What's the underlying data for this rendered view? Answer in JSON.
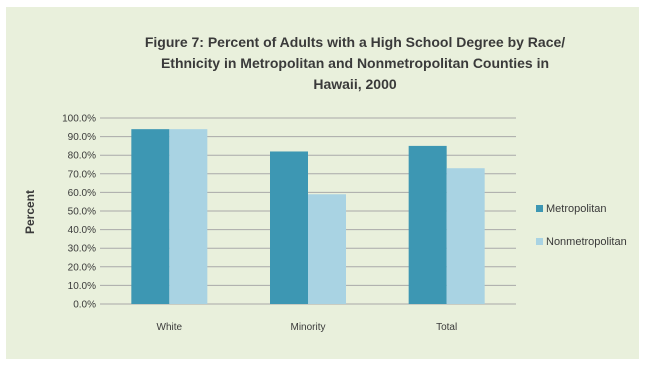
{
  "chart_data": {
    "type": "bar",
    "title_lines": [
      "Figure 7: Percent of Adults with a High School Degree by Race/",
      "Ethnicity in Metropolitan and Nonmetropolitan Counties in",
      "Hawaii, 2000"
    ],
    "ylabel": "Percent",
    "xlabel": "",
    "categories": [
      "White",
      "Minority",
      "Total"
    ],
    "series": [
      {
        "name": "Metropolitan",
        "values": [
          94.0,
          82.0,
          85.0
        ],
        "color": "#3d97b3"
      },
      {
        "name": "Nonmetropolitan",
        "values": [
          94.0,
          59.0,
          73.0
        ],
        "color": "#a9d3e3"
      }
    ],
    "ylim": [
      0,
      100
    ],
    "yticks": [
      "0.0%",
      "10.0%",
      "20.0%",
      "30.0%",
      "40.0%",
      "50.0%",
      "60.0%",
      "70.0%",
      "80.0%",
      "90.0%",
      "100.0%"
    ],
    "grid": true,
    "legend_position": "right",
    "background_color": "#e9f0dc"
  }
}
